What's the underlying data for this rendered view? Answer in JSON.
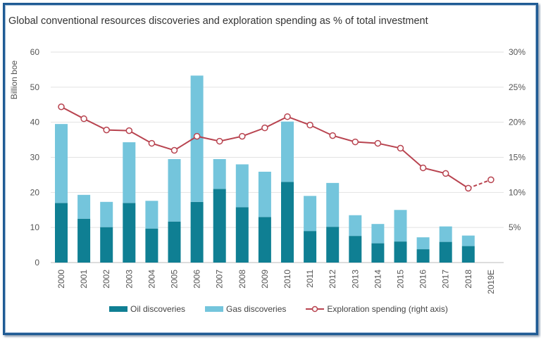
{
  "title": "Global conventional resources discoveries and exploration spending as % of total investment",
  "chart_data": {
    "type": "bar",
    "title": "Global conventional resources discoveries and exploration spending as % of total investment",
    "ylabel": "Billion boe",
    "ylim": [
      0,
      60
    ],
    "yticks": [
      "0",
      "10",
      "20",
      "30",
      "40",
      "50",
      "60"
    ],
    "y2lim": [
      0,
      30
    ],
    "y2ticks": [
      "5%",
      "10%",
      "15%",
      "20%",
      "25%",
      "30%"
    ],
    "grid": true,
    "legend_position": "bottom",
    "stacked": true,
    "categories": [
      "2000",
      "2001",
      "2002",
      "2003",
      "2004",
      "2005",
      "2006",
      "2007",
      "2008",
      "2009",
      "2010",
      "2011",
      "2012",
      "2013",
      "2014",
      "2015",
      "2016",
      "2017",
      "2018",
      "2019E"
    ],
    "series": [
      {
        "name": "Oil discoveries",
        "type": "bar",
        "color": "#0f7f93",
        "values": [
          17,
          12.5,
          10.1,
          17,
          9.7,
          11.7,
          17.3,
          21,
          15.8,
          13,
          23,
          9,
          10.2,
          7.6,
          5.5,
          6,
          3.8,
          5.9,
          4.7,
          null
        ]
      },
      {
        "name": "Gas discoveries",
        "type": "bar",
        "color": "#74c5dc",
        "values": [
          22.5,
          6.8,
          7.2,
          17.3,
          7.9,
          17.8,
          36,
          8.5,
          12.2,
          12.9,
          17.2,
          10,
          12.5,
          5.9,
          5.5,
          9,
          3.4,
          4.4,
          3,
          null
        ]
      },
      {
        "name": "Exploration spending (right axis)",
        "type": "line",
        "axis": "right",
        "color": "#b8434f",
        "unit": "%",
        "values": [
          22.2,
          20.5,
          18.9,
          18.8,
          17,
          16,
          18,
          17.3,
          18,
          19.2,
          20.8,
          19.6,
          18.1,
          17.2,
          17,
          16.3,
          13.5,
          12.7,
          10.6,
          11.8
        ],
        "dashed_from": "2018"
      }
    ]
  }
}
